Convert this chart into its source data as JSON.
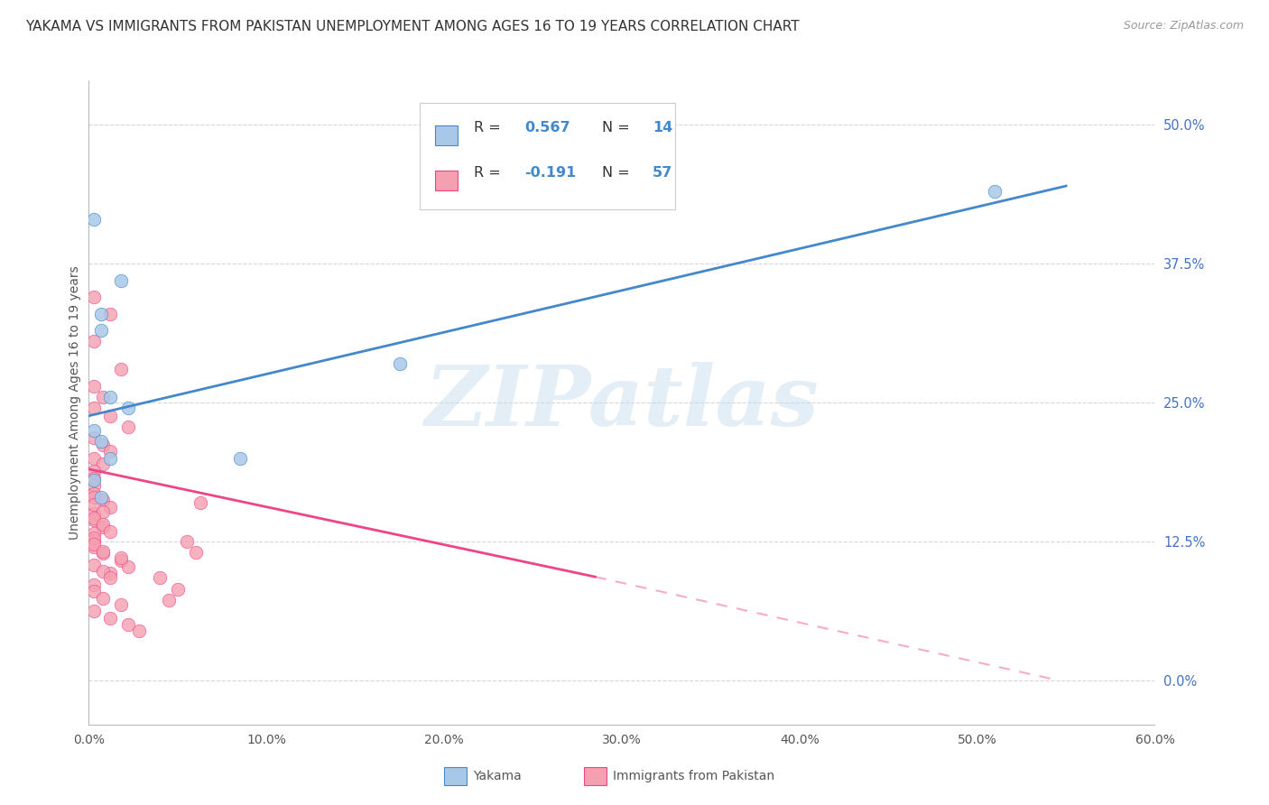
{
  "title": "YAKAMA VS IMMIGRANTS FROM PAKISTAN UNEMPLOYMENT AMONG AGES 16 TO 19 YEARS CORRELATION CHART",
  "source": "Source: ZipAtlas.com",
  "ylabel": "Unemployment Among Ages 16 to 19 years",
  "xlabel_ticks": [
    "0.0%",
    "10.0%",
    "20.0%",
    "30.0%",
    "40.0%",
    "50.0%",
    "60.0%"
  ],
  "ylabel_ticks": [
    "0.0%",
    "12.5%",
    "25.0%",
    "37.5%",
    "50.0%"
  ],
  "xlim": [
    0.0,
    0.6
  ],
  "ylim": [
    -0.04,
    0.54
  ],
  "yakama_scatter": [
    [
      0.003,
      0.415
    ],
    [
      0.007,
      0.33
    ],
    [
      0.007,
      0.315
    ],
    [
      0.018,
      0.36
    ],
    [
      0.012,
      0.255
    ],
    [
      0.022,
      0.245
    ],
    [
      0.003,
      0.225
    ],
    [
      0.007,
      0.215
    ],
    [
      0.012,
      0.2
    ],
    [
      0.003,
      0.18
    ],
    [
      0.007,
      0.165
    ],
    [
      0.085,
      0.2
    ],
    [
      0.175,
      0.285
    ],
    [
      0.51,
      0.44
    ]
  ],
  "pakistan_scatter": [
    [
      0.003,
      0.345
    ],
    [
      0.003,
      0.305
    ],
    [
      0.012,
      0.33
    ],
    [
      0.018,
      0.28
    ],
    [
      0.003,
      0.265
    ],
    [
      0.008,
      0.255
    ],
    [
      0.003,
      0.245
    ],
    [
      0.012,
      0.238
    ],
    [
      0.022,
      0.228
    ],
    [
      0.003,
      0.218
    ],
    [
      0.008,
      0.212
    ],
    [
      0.012,
      0.206
    ],
    [
      0.003,
      0.2
    ],
    [
      0.008,
      0.195
    ],
    [
      0.003,
      0.188
    ],
    [
      0.003,
      0.182
    ],
    [
      0.003,
      0.175
    ],
    [
      0.003,
      0.168
    ],
    [
      0.008,
      0.162
    ],
    [
      0.012,
      0.156
    ],
    [
      0.003,
      0.15
    ],
    [
      0.003,
      0.144
    ],
    [
      0.008,
      0.138
    ],
    [
      0.003,
      0.132
    ],
    [
      0.003,
      0.126
    ],
    [
      0.003,
      0.12
    ],
    [
      0.008,
      0.114
    ],
    [
      0.018,
      0.108
    ],
    [
      0.022,
      0.102
    ],
    [
      0.012,
      0.096
    ],
    [
      0.003,
      0.165
    ],
    [
      0.003,
      0.158
    ],
    [
      0.008,
      0.152
    ],
    [
      0.003,
      0.146
    ],
    [
      0.008,
      0.14
    ],
    [
      0.012,
      0.134
    ],
    [
      0.003,
      0.128
    ],
    [
      0.003,
      0.122
    ],
    [
      0.008,
      0.116
    ],
    [
      0.018,
      0.11
    ],
    [
      0.003,
      0.104
    ],
    [
      0.008,
      0.098
    ],
    [
      0.012,
      0.092
    ],
    [
      0.003,
      0.086
    ],
    [
      0.003,
      0.08
    ],
    [
      0.008,
      0.074
    ],
    [
      0.018,
      0.068
    ],
    [
      0.003,
      0.062
    ],
    [
      0.012,
      0.056
    ],
    [
      0.022,
      0.05
    ],
    [
      0.028,
      0.044
    ],
    [
      0.063,
      0.16
    ],
    [
      0.055,
      0.125
    ],
    [
      0.06,
      0.115
    ],
    [
      0.04,
      0.092
    ],
    [
      0.05,
      0.082
    ],
    [
      0.045,
      0.072
    ]
  ],
  "blue_line": {
    "x0": 0.0,
    "y0": 0.238,
    "x1": 0.55,
    "y1": 0.445
  },
  "pink_line_solid": {
    "x0": 0.0,
    "y0": 0.19,
    "x1": 0.285,
    "y1": 0.093
  },
  "pink_line_dashed": {
    "x0": 0.285,
    "y0": 0.093,
    "x1": 0.545,
    "y1": 0.0
  },
  "watermark_text": "ZIPatlas",
  "background_color": "#ffffff",
  "plot_bg_color": "#ffffff",
  "grid_color": "#cccccc",
  "yakama_color": "#a8c8e8",
  "pakistan_color": "#f4a0b0",
  "blue_line_color": "#4488cc",
  "pink_line_color": "#ee4488",
  "right_axis_color": "#4472c4",
  "title_fontsize": 11,
  "source_fontsize": 9,
  "legend_fontsize": 11,
  "legend_r1": "R = 0.567",
  "legend_n1": "N = 14",
  "legend_r2": "R = -0.191",
  "legend_n2": "N = 57",
  "bottom_legend_yakama": "Yakama",
  "bottom_legend_pakistan": "Immigrants from Pakistan"
}
